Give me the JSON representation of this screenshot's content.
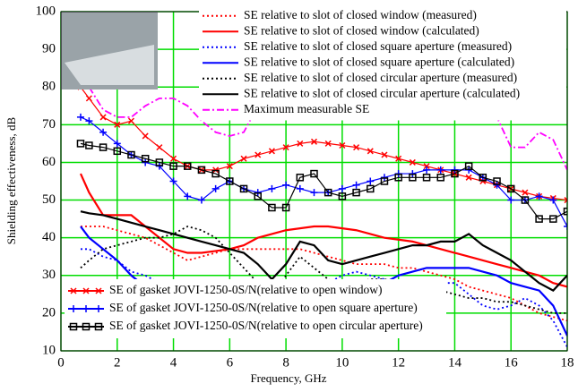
{
  "chart_data": {
    "type": "line",
    "xlabel": "Frequency, GHz",
    "ylabel": "Shielding effectiveness, dB",
    "x": [
      0.7,
      1,
      1.5,
      2,
      2.5,
      3,
      3.5,
      4,
      4.5,
      5,
      5.5,
      6,
      6.5,
      7,
      7.5,
      8,
      8.5,
      9,
      9.5,
      10,
      10.5,
      11,
      11.5,
      12,
      12.5,
      13,
      13.5,
      14,
      14.5,
      15,
      15.5,
      16,
      16.5,
      17,
      17.5,
      18
    ],
    "xlim": [
      0,
      18
    ],
    "xticks": [
      0,
      2,
      4,
      6,
      8,
      10,
      12,
      14,
      16,
      18
    ],
    "ylim": [
      10,
      100
    ],
    "yticks": [
      10,
      20,
      30,
      40,
      50,
      60,
      70,
      80,
      90,
      100
    ],
    "grid": true,
    "grid_color": "#00dd00",
    "series": [
      {
        "name": "SE relative to slot of closed window (measured)",
        "color": "#ff0000",
        "linestyle": "dotted",
        "legend": "upper right",
        "values": [
          43,
          43,
          43,
          42,
          41,
          40,
          38,
          36,
          34,
          35,
          36,
          37,
          37,
          37,
          37,
          37,
          37,
          36,
          35,
          34,
          33,
          33,
          33,
          32,
          32,
          31,
          30,
          29,
          27,
          26,
          25,
          24,
          22,
          20,
          19,
          18
        ]
      },
      {
        "name": "SE relative to slot of closed window (calculated)",
        "color": "#ff0000",
        "linestyle": "solid",
        "legend": "upper right",
        "values": [
          57,
          52,
          46,
          46,
          46,
          43,
          40,
          37,
          36,
          36,
          36.5,
          37,
          38,
          40,
          41,
          42,
          42.5,
          43,
          43,
          42.5,
          42,
          41,
          40,
          39.5,
          39,
          38,
          37,
          36,
          35,
          34,
          33,
          32,
          31,
          30,
          28,
          27
        ]
      },
      {
        "name": "SE relative to slot of closed square aperture (measured)",
        "color": "#0000ff",
        "linestyle": "dotted",
        "legend": "upper right",
        "values": [
          37,
          37,
          35,
          34,
          31,
          30,
          28,
          26,
          23,
          21,
          20,
          22,
          24,
          26,
          25,
          24,
          25,
          26,
          28,
          30,
          31,
          30,
          29,
          28,
          27,
          27,
          28,
          28,
          25,
          22,
          21,
          22,
          24,
          22,
          18,
          11
        ]
      },
      {
        "name": "SE relative to slot of closed square aperture (calculated)",
        "color": "#0000ff",
        "linestyle": "solid",
        "legend": "upper right",
        "values": [
          43,
          40,
          37,
          34,
          30,
          27,
          23,
          21,
          21,
          20,
          17,
          16,
          19,
          22,
          25,
          25,
          21,
          19,
          19,
          20,
          23,
          26,
          28,
          30,
          31,
          32,
          32,
          32,
          32,
          31,
          30,
          28,
          27,
          26,
          22,
          14
        ]
      },
      {
        "name": "SE relative to slot of closed circular aperture (measured)",
        "color": "#000000",
        "linestyle": "dotted",
        "legend": "upper right",
        "values": [
          32,
          34,
          37,
          38,
          39,
          40,
          40,
          41,
          43,
          42,
          40,
          36,
          32,
          28,
          24,
          30,
          35,
          32,
          29,
          27,
          28,
          29,
          29,
          28,
          27,
          26,
          26,
          25,
          24,
          24,
          23,
          23,
          22,
          21,
          20,
          20
        ]
      },
      {
        "name": "SE relative to slot of closed circular aperture (calculated)",
        "color": "#000000",
        "linestyle": "solid",
        "legend": "upper right",
        "values": [
          47,
          46.5,
          46,
          45,
          44,
          43,
          42,
          41,
          40,
          39,
          38,
          37,
          36,
          33,
          29,
          33,
          39,
          38,
          34,
          33,
          34,
          35,
          36,
          37,
          38,
          38,
          39,
          39,
          41,
          38,
          36,
          34,
          31,
          28,
          26,
          30
        ]
      },
      {
        "name": "Maximum measurable SE",
        "color": "#ff00ff",
        "linestyle": "dashdot",
        "legend": "upper right",
        "values": [
          83,
          80,
          74,
          72,
          72,
          75,
          77,
          77,
          75,
          71,
          68,
          67,
          68,
          75,
          80,
          82,
          85,
          86,
          86,
          86,
          85,
          85,
          85,
          84,
          84,
          84,
          83,
          82,
          78,
          74,
          72,
          64,
          64,
          68,
          66,
          58
        ]
      },
      {
        "name": "SE of gasket JOVI-1250-0S/N(relative to open window)",
        "color": "#ff0000",
        "linestyle": "solid",
        "marker": "x",
        "legend": "lower left",
        "values": [
          80,
          77,
          72,
          70,
          71,
          67,
          64,
          61,
          59,
          58,
          58,
          59,
          61,
          62,
          63,
          64,
          65,
          65.5,
          65,
          64.5,
          64,
          63,
          62,
          61,
          60,
          59,
          58,
          57,
          56,
          55,
          54,
          53,
          52,
          51,
          50.5,
          50
        ]
      },
      {
        "name": "SE of gasket JOVI-1250-0S/N(relative to open square aperture)",
        "color": "#0000ff",
        "linestyle": "solid",
        "marker": "+",
        "legend": "lower left",
        "values": [
          72,
          71,
          68,
          65,
          62,
          60,
          59,
          55,
          51,
          50,
          53,
          55,
          53,
          52,
          53,
          54,
          53,
          52,
          52,
          53,
          54,
          55,
          56,
          57,
          57,
          58,
          58,
          58,
          58,
          56,
          54,
          50,
          50,
          51,
          50,
          43
        ]
      },
      {
        "name": "SE of gasket JOVI-1250-0S/N(relative to open circular aperture)",
        "color": "#000000",
        "linestyle": "solid",
        "marker": "square",
        "legend": "lower left",
        "values": [
          65,
          64.5,
          64,
          63,
          62,
          61,
          60,
          59,
          59,
          58,
          57,
          55,
          53,
          51,
          48,
          48,
          56,
          57,
          52,
          51,
          52,
          53,
          55,
          56,
          56,
          56,
          56,
          57,
          59,
          56,
          55,
          53,
          50,
          45,
          45,
          47
        ]
      }
    ]
  }
}
